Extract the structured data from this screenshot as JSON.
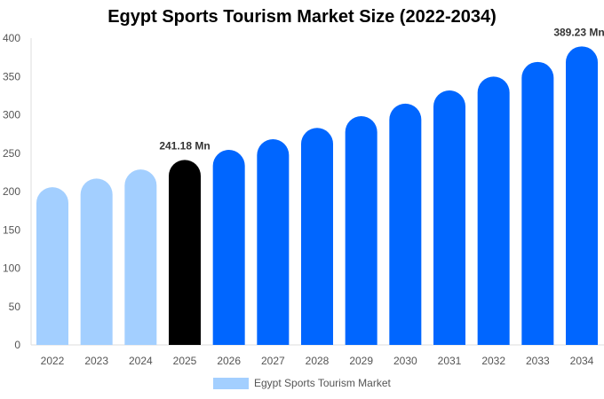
{
  "chart_data": {
    "type": "bar",
    "title": "Egypt Sports Tourism Market Size (2022-2034)",
    "categories": [
      "2022",
      "2023",
      "2024",
      "2025",
      "2026",
      "2027",
      "2028",
      "2029",
      "2030",
      "2031",
      "2032",
      "2033",
      "2034"
    ],
    "series": [
      {
        "name": "Egypt Sports Tourism Market",
        "values": [
          205.7,
          216.9,
          228.7,
          241.18,
          254.3,
          268.2,
          282.9,
          298.3,
          314.6,
          331.8,
          349.9,
          369.0,
          389.23
        ]
      }
    ],
    "data_labels": {
      "2025": "241.18 Mn",
      "2034": "389.23 Mn"
    },
    "yticks": [
      0,
      50,
      100,
      150,
      200,
      250,
      300,
      350,
      400
    ],
    "ylim": [
      0,
      400
    ],
    "grid": false,
    "legend_position": "bottom",
    "colors": {
      "historical": "#a3cfff",
      "current": "#000000",
      "forecast": "#0066ff"
    }
  }
}
